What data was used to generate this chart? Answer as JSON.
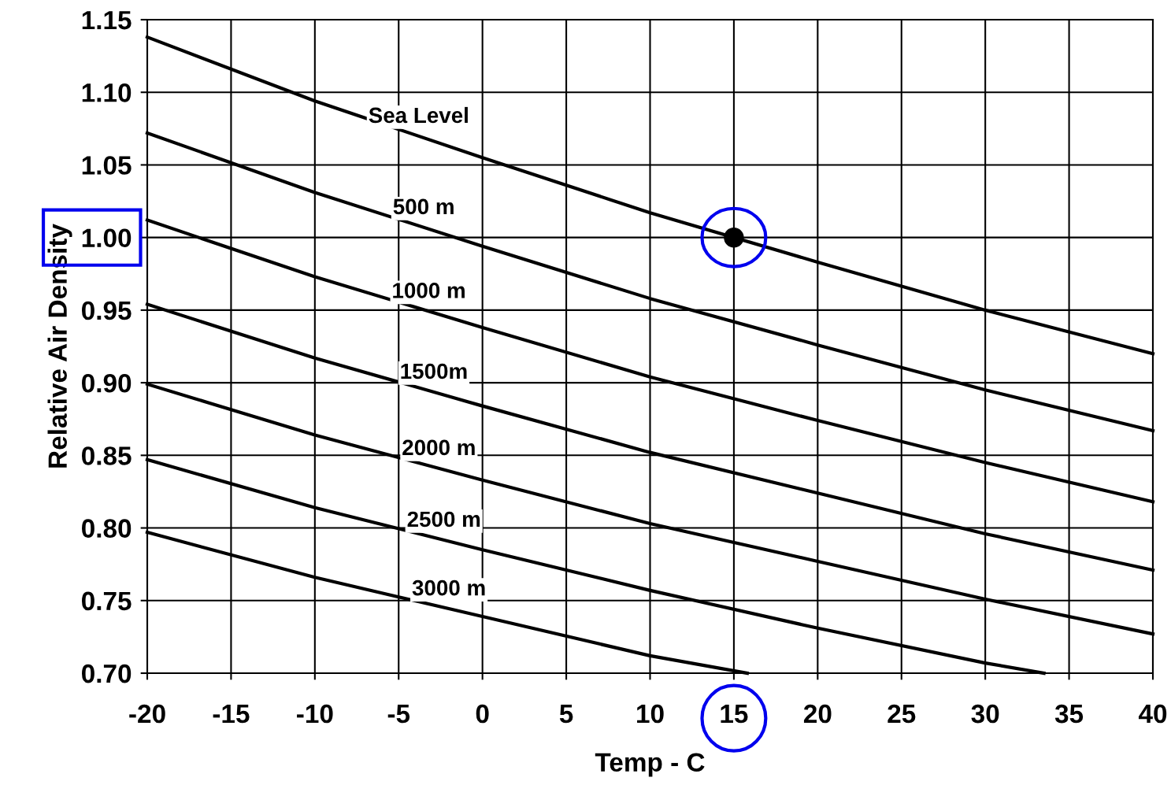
{
  "chart_data": {
    "type": "line",
    "xlabel": "Temp - C",
    "ylabel": "Relative Air Density",
    "xlim": [
      -20,
      40
    ],
    "xticks": [
      -20,
      -15,
      -10,
      -5,
      0,
      5,
      10,
      15,
      20,
      25,
      30,
      35,
      40
    ],
    "ylim": [
      0.7,
      1.15
    ],
    "yticks": [
      {
        "value": 0.7,
        "label": "0.70"
      },
      {
        "value": 0.75,
        "label": "0.75"
      },
      {
        "value": 0.8,
        "label": "0.80"
      },
      {
        "value": 0.85,
        "label": "0.85"
      },
      {
        "value": 0.9,
        "label": "0.90"
      },
      {
        "value": 0.95,
        "label": "0.95"
      },
      {
        "value": 1.0,
        "label": "1.00"
      },
      {
        "value": 1.05,
        "label": "1.05"
      },
      {
        "value": 1.1,
        "label": "1.10"
      },
      {
        "value": 1.15,
        "label": "1.15"
      }
    ],
    "grid": true,
    "legend": false,
    "marker": "none",
    "line_style": "solid",
    "series": [
      {
        "name": "Sea Level",
        "color": "#000000",
        "x": [
          -20,
          -10,
          0,
          10,
          20,
          30,
          40
        ],
        "values": [
          1.138,
          1.094,
          1.055,
          1.017,
          0.983,
          0.95,
          0.92
        ]
      },
      {
        "name": "500 m",
        "color": "#000000",
        "x": [
          -20,
          -10,
          0,
          10,
          20,
          30,
          40
        ],
        "values": [
          1.072,
          1.031,
          0.994,
          0.958,
          0.926,
          0.895,
          0.867
        ]
      },
      {
        "name": "1000 m",
        "color": "#000000",
        "x": [
          -20,
          -10,
          0,
          10,
          20,
          30,
          40
        ],
        "values": [
          1.012,
          0.973,
          0.938,
          0.904,
          0.874,
          0.845,
          0.818
        ]
      },
      {
        "name": "1500m",
        "color": "#000000",
        "x": [
          -20,
          -10,
          0,
          10,
          20,
          30,
          40
        ],
        "values": [
          0.954,
          0.917,
          0.884,
          0.852,
          0.824,
          0.796,
          0.771
        ]
      },
      {
        "name": "2000 m",
        "color": "#000000",
        "x": [
          -20,
          -10,
          0,
          10,
          20,
          30,
          40
        ],
        "values": [
          0.899,
          0.864,
          0.833,
          0.803,
          0.777,
          0.751,
          0.727
        ]
      },
      {
        "name": "2500 m",
        "color": "#000000",
        "x": [
          -20,
          -10,
          0,
          10,
          20,
          30,
          33.5
        ],
        "values": [
          0.847,
          0.814,
          0.785,
          0.757,
          0.731,
          0.707,
          0.7
        ]
      },
      {
        "name": "3000 m",
        "color": "#000000",
        "x": [
          -20,
          -10,
          0,
          10,
          15.8
        ],
        "values": [
          0.797,
          0.766,
          0.739,
          0.712,
          0.7
        ]
      },
      {
        "type": "scatter",
        "marker": "circle",
        "color": "#000000",
        "x": [
          15
        ],
        "values": [
          1.0
        ]
      }
    ]
  }
}
